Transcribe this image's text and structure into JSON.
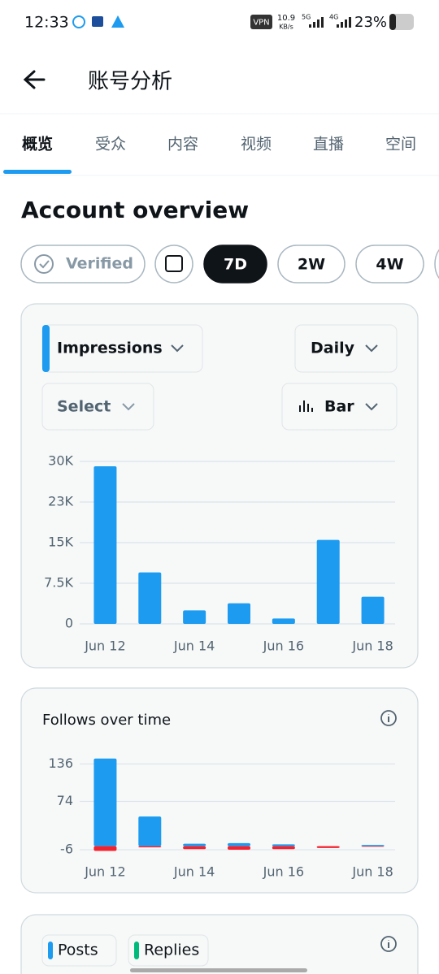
{
  "status_bar": {
    "time": "12:33",
    "vpn": "VPN",
    "speed": "10.9",
    "speed_unit": "KB/s",
    "net_1": "5G",
    "net_2": "4G",
    "battery": "23%"
  },
  "header": {
    "title": "账号分析"
  },
  "tabs": [
    "概览",
    "受众",
    "内容",
    "视频",
    "直播",
    "空间"
  ],
  "section_title": "Account overview",
  "filters": {
    "verified": "Verified",
    "ranges": [
      "7D",
      "2W",
      "4W"
    ]
  },
  "controls": {
    "metric": "Impressions",
    "interval": "Daily",
    "select": "Select",
    "chart_type": "Bar"
  },
  "chart_data": [
    {
      "type": "bar",
      "categories": [
        "Jun 12",
        null,
        "Jun 14",
        null,
        "Jun 16",
        null,
        "Jun 18"
      ],
      "series": [
        {
          "color": "#1d9bf0",
          "values": [
            29100,
            9500,
            2500,
            3800,
            1000,
            15500,
            5000
          ]
        }
      ],
      "ylim": [
        0,
        30000
      ],
      "yticks": [
        0,
        {
          "value": 7500,
          "label": "7.5K"
        },
        {
          "value": 15000,
          "label": "15K"
        },
        {
          "value": 22500,
          "label": "23K"
        },
        {
          "value": 30000,
          "label": "30K"
        }
      ],
      "grid": true
    },
    {
      "type": "bar",
      "title": "Follows over time",
      "categories": [
        "Jun 12",
        null,
        "Jun 14",
        null,
        "Jun 16",
        null,
        "Jun 18"
      ],
      "series": [
        {
          "color": "#1d9bf0",
          "values": [
            145,
            49,
            4,
            5,
            3,
            0,
            2
          ]
        },
        {
          "color": "#f4212e",
          "values": [
            -8,
            -2,
            -5,
            -6,
            -5,
            -3,
            -1
          ]
        }
      ],
      "ylim": [
        -14,
        150
      ],
      "yticks": [
        -6,
        74,
        136
      ],
      "grid": true
    }
  ],
  "bottom_card": {
    "legend": [
      {
        "name": "Posts",
        "color": "#1d9bf0"
      },
      {
        "name": "Replies",
        "color": "#00ba7c"
      }
    ]
  }
}
